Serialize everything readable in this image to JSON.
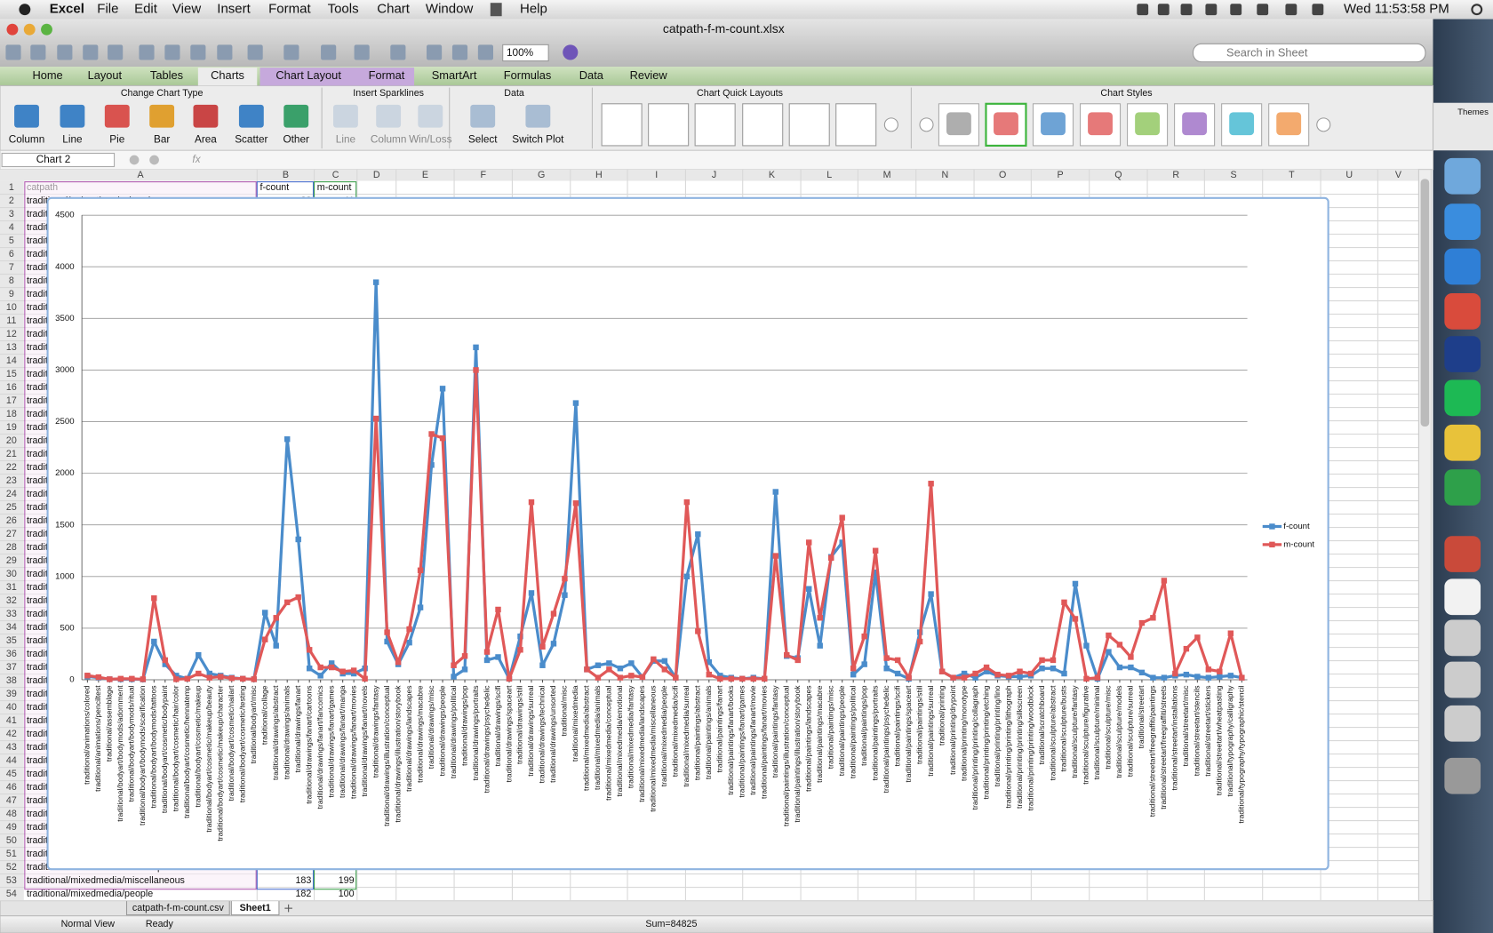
{
  "menu_bar": {
    "app": "Excel",
    "items": [
      "File",
      "Edit",
      "View",
      "Insert",
      "Format",
      "Tools",
      "Chart",
      "Window",
      "Help"
    ],
    "clock": "Wed 11:53:58 PM"
  },
  "window": {
    "title": "catpath-f-m-count.xlsx"
  },
  "toolbar": {
    "zoom": "100%",
    "search_placeholder": "Search in Sheet"
  },
  "ribbon": {
    "tabs": [
      "Home",
      "Layout",
      "Tables",
      "Charts",
      "Chart Layout",
      "Format",
      "SmartArt",
      "Formulas",
      "Data",
      "Review"
    ],
    "groups": [
      {
        "title": "Change Chart Type",
        "buttons": [
          "Column",
          "Line",
          "Pie",
          "Bar",
          "Area",
          "Scatter",
          "Other"
        ]
      },
      {
        "title": "Insert Sparklines",
        "buttons": [
          "Line",
          "Column",
          "Win/Loss"
        ]
      },
      {
        "title": "Data",
        "buttons": [
          "Select",
          "Switch Plot"
        ]
      },
      {
        "title": "Chart Quick Layouts",
        "buttons": []
      },
      {
        "title": "Chart Styles",
        "buttons": []
      }
    ]
  },
  "side_window": {
    "label": "Themes"
  },
  "formula_bar": {
    "name_box": "Chart 2",
    "fx": "fx"
  },
  "sheet": {
    "columns": [
      "A",
      "B",
      "C",
      "D",
      "E",
      "F",
      "G",
      "H",
      "I",
      "J",
      "K",
      "L",
      "M",
      "N",
      "O",
      "P",
      "Q",
      "R",
      "S",
      "T",
      "U",
      "V"
    ],
    "row_numbers": [
      1,
      2,
      3,
      4,
      5,
      6,
      7,
      8,
      9,
      10,
      11,
      12,
      13,
      14,
      15,
      16,
      17,
      18,
      19,
      20,
      21,
      22,
      23,
      24,
      25,
      26,
      27,
      28,
      29,
      30,
      31,
      32,
      33,
      34,
      35,
      36,
      37,
      38,
      39,
      40,
      41,
      42,
      43,
      44,
      45,
      46,
      47,
      48,
      49,
      50,
      51,
      52,
      53,
      54
    ],
    "headers": [
      "catpath",
      "f-count",
      "m-count"
    ],
    "tabs": [
      "catpath-f-m-count.csv",
      "Sheet1"
    ]
  },
  "status_bar": {
    "view": "Normal View",
    "state": "Ready",
    "sum": "Sum=84825"
  },
  "chart_data": {
    "type": "line",
    "ylim": [
      0,
      4500
    ],
    "yticks": [
      0,
      500,
      1000,
      1500,
      2000,
      2500,
      3000,
      3500,
      4000,
      4500
    ],
    "grid": true,
    "legend": "right",
    "categories": [
      "traditional/animations/colored",
      "traditional/animations/penciltest",
      "traditional/assemblage",
      "traditional/bodyart/bodymods/adornment",
      "traditional/bodyart/bodymods/ritual",
      "traditional/bodyart/bodymods/scarification",
      "traditional/bodyart/bodymods/tattoos",
      "traditional/bodyart/cosmetic/bodypaint",
      "traditional/bodyart/cosmetic/hair/color",
      "traditional/bodyart/cosmetic/hennatemp",
      "traditional/bodyart/cosmetic/makeup",
      "traditional/bodyart/cosmetic/makeup/beauty",
      "traditional/bodyart/cosmetic/makeup/character",
      "traditional/bodyart/cosmetic/nailart",
      "traditional/bodyart/cosmetic/testing",
      "traditional/bodyart/misc",
      "traditional/collage",
      "traditional/drawings/abstract",
      "traditional/drawings/animals",
      "traditional/drawings/fanart",
      "traditional/drawings/fanart/cartoons",
      "traditional/drawings/fanart/fancomics",
      "traditional/drawings/fanart/games",
      "traditional/drawings/fanart/manga",
      "traditional/drawings/fanart/movies",
      "traditional/drawings/fanart/novels",
      "traditional/drawings/fantasy",
      "traditional/drawings/illustration/conceptual",
      "traditional/drawings/illustration/storybook",
      "traditional/drawings/landscapes",
      "traditional/drawings/macabre",
      "traditional/drawings/misc",
      "traditional/drawings/people",
      "traditional/drawings/political",
      "traditional/drawings/pop",
      "traditional/drawings/portraits",
      "traditional/drawings/psychedelic",
      "traditional/drawings/scifi",
      "traditional/drawings/spaceart",
      "traditional/drawings/still",
      "traditional/drawings/surreal",
      "traditional/drawings/technical",
      "traditional/drawings/unsorted",
      "traditional/misc",
      "traditional/mixedmedia",
      "traditional/mixedmedia/abstract",
      "traditional/mixedmedia/animals",
      "traditional/mixedmedia/conceptual",
      "traditional/mixedmedia/emotional",
      "traditional/mixedmedia/fantasy",
      "traditional/mixedmedia/landscapes",
      "traditional/mixedmedia/miscellaneous",
      "traditional/mixedmedia/people",
      "traditional/mixedmedia/scifi",
      "traditional/mixedmedia/surreal",
      "traditional/paintings/abstract",
      "traditional/paintings/animals",
      "traditional/paintings/fanart",
      "traditional/paintings/fanart/books",
      "traditional/paintings/fanart/games",
      "traditional/paintings/fanart/movie",
      "traditional/paintings/fanart/movies",
      "traditional/paintings/fantasy",
      "traditional/paintings/illustration/conceptual",
      "traditional/paintings/illustration/storybook",
      "traditional/paintings/landscapes",
      "traditional/paintings/macabre",
      "traditional/paintings/misc",
      "traditional/paintings/people",
      "traditional/paintings/political",
      "traditional/paintings/pop",
      "traditional/paintings/portraits",
      "traditional/paintings/psychedelic",
      "traditional/paintings/scifi",
      "traditional/paintings/spaceart",
      "traditional/paintings/still",
      "traditional/paintings/surreal",
      "traditional/printing",
      "traditional/printing/drypoint",
      "traditional/printing/monotype",
      "traditional/printing/printing/collagraph",
      "traditional/printing/printing/etching",
      "traditional/printing/printing/lino",
      "traditional/printing/printing/lithograph",
      "traditional/printing/printing/silkscreen",
      "traditional/printing/printing/woodblock",
      "traditional/scratchboard",
      "traditional/sculpture/abstract",
      "traditional/sculpture/busts",
      "traditional/sculpture/fantasy",
      "traditional/sculpture/figurative",
      "traditional/sculpture/minimal",
      "traditional/sculpture/misc",
      "traditional/sculpture/models",
      "traditional/sculpture/surreal",
      "traditional/streetart",
      "traditional/streetart/freegraffiti/paintings",
      "traditional/streetart/freegraffiti/streets",
      "traditional/streetart/installations",
      "traditional/streetart/misc",
      "traditional/streetart/stencils",
      "traditional/streetart/stickers",
      "traditional/streetart/wheatpasting",
      "traditional/typography/calligraphy",
      "traditional/typography/typographic/stencil"
    ],
    "series": [
      {
        "name": "f-count",
        "color": "#4a8ccb",
        "values": [
          32,
          20,
          5,
          5,
          5,
          3,
          370,
          150,
          40,
          10,
          240,
          60,
          40,
          20,
          10,
          5,
          650,
          330,
          2330,
          1360,
          110,
          40,
          160,
          60,
          60,
          110,
          3850,
          370,
          150,
          360,
          700,
          2080,
          2820,
          30,
          100,
          3220,
          190,
          220,
          10,
          420,
          840,
          140,
          350,
          820,
          2680,
          100,
          140,
          160,
          110,
          160,
          27,
          183,
          182,
          20,
          1000,
          1410,
          170,
          40,
          20,
          10,
          20,
          10,
          1820,
          230,
          210,
          880,
          330,
          1190,
          1330,
          50,
          150,
          1040,
          110,
          60,
          10,
          460,
          830,
          80,
          20,
          60,
          20,
          80,
          40,
          30,
          30,
          40,
          110,
          110,
          60,
          930,
          330,
          10,
          270,
          120,
          120,
          70,
          20,
          20,
          40,
          50,
          30,
          20,
          30,
          40,
          20
        ]
      },
      {
        "name": "m-count",
        "color": "#e05858",
        "values": [
          41,
          25,
          5,
          10,
          10,
          5,
          790,
          190,
          5,
          10,
          60,
          20,
          30,
          15,
          10,
          5,
          390,
          600,
          750,
          800,
          290,
          120,
          120,
          80,
          90,
          10,
          2530,
          460,
          170,
          490,
          1060,
          2380,
          2340,
          140,
          230,
          3000,
          270,
          680,
          10,
          290,
          1720,
          320,
          640,
          980,
          1710,
          100,
          20,
          100,
          20,
          40,
          26,
          199,
          100,
          20,
          1720,
          470,
          50,
          10,
          10,
          10,
          10,
          10,
          1200,
          240,
          190,
          1330,
          600,
          1180,
          1570,
          110,
          420,
          1250,
          210,
          190,
          20,
          370,
          1900,
          80,
          20,
          20,
          60,
          120,
          50,
          40,
          80,
          60,
          190,
          190,
          750,
          590,
          10,
          20,
          430,
          340,
          220,
          550,
          600,
          960,
          60,
          300,
          410,
          100,
          80,
          450,
          20
        ]
      }
    ]
  }
}
